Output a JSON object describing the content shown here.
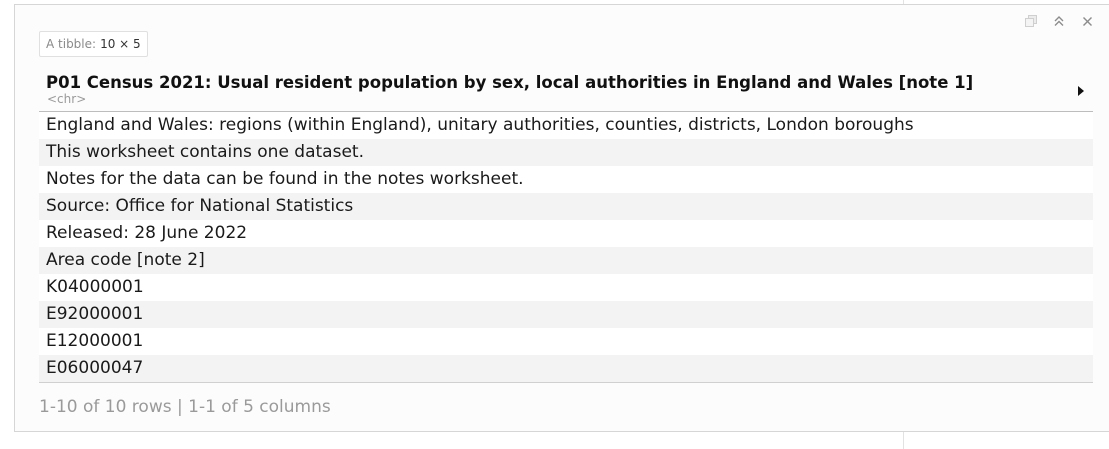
{
  "tibble": {
    "prefix": "A tibble:",
    "dims": "10 × 5"
  },
  "column": {
    "title": "P01 Census 2021: Usual resident population by sex, local authorities in England and Wales [note 1]",
    "type": "<chr>"
  },
  "rows": [
    "England and Wales: regions (within England), unitary authorities, counties, districts, London boroughs",
    "This worksheet contains one dataset.",
    "Notes for the data can be found in the notes worksheet.",
    "Source: Office for National Statistics",
    "Released: 28 June 2022",
    "Area code [note 2]",
    "K04000001",
    "E92000001",
    "E12000001",
    "E06000047"
  ],
  "pager": {
    "info": "1-10 of 10 rows | 1-1 of 5 columns"
  },
  "controls": {
    "icons": [
      "copy-icon",
      "collapse-icon",
      "close-icon"
    ]
  }
}
